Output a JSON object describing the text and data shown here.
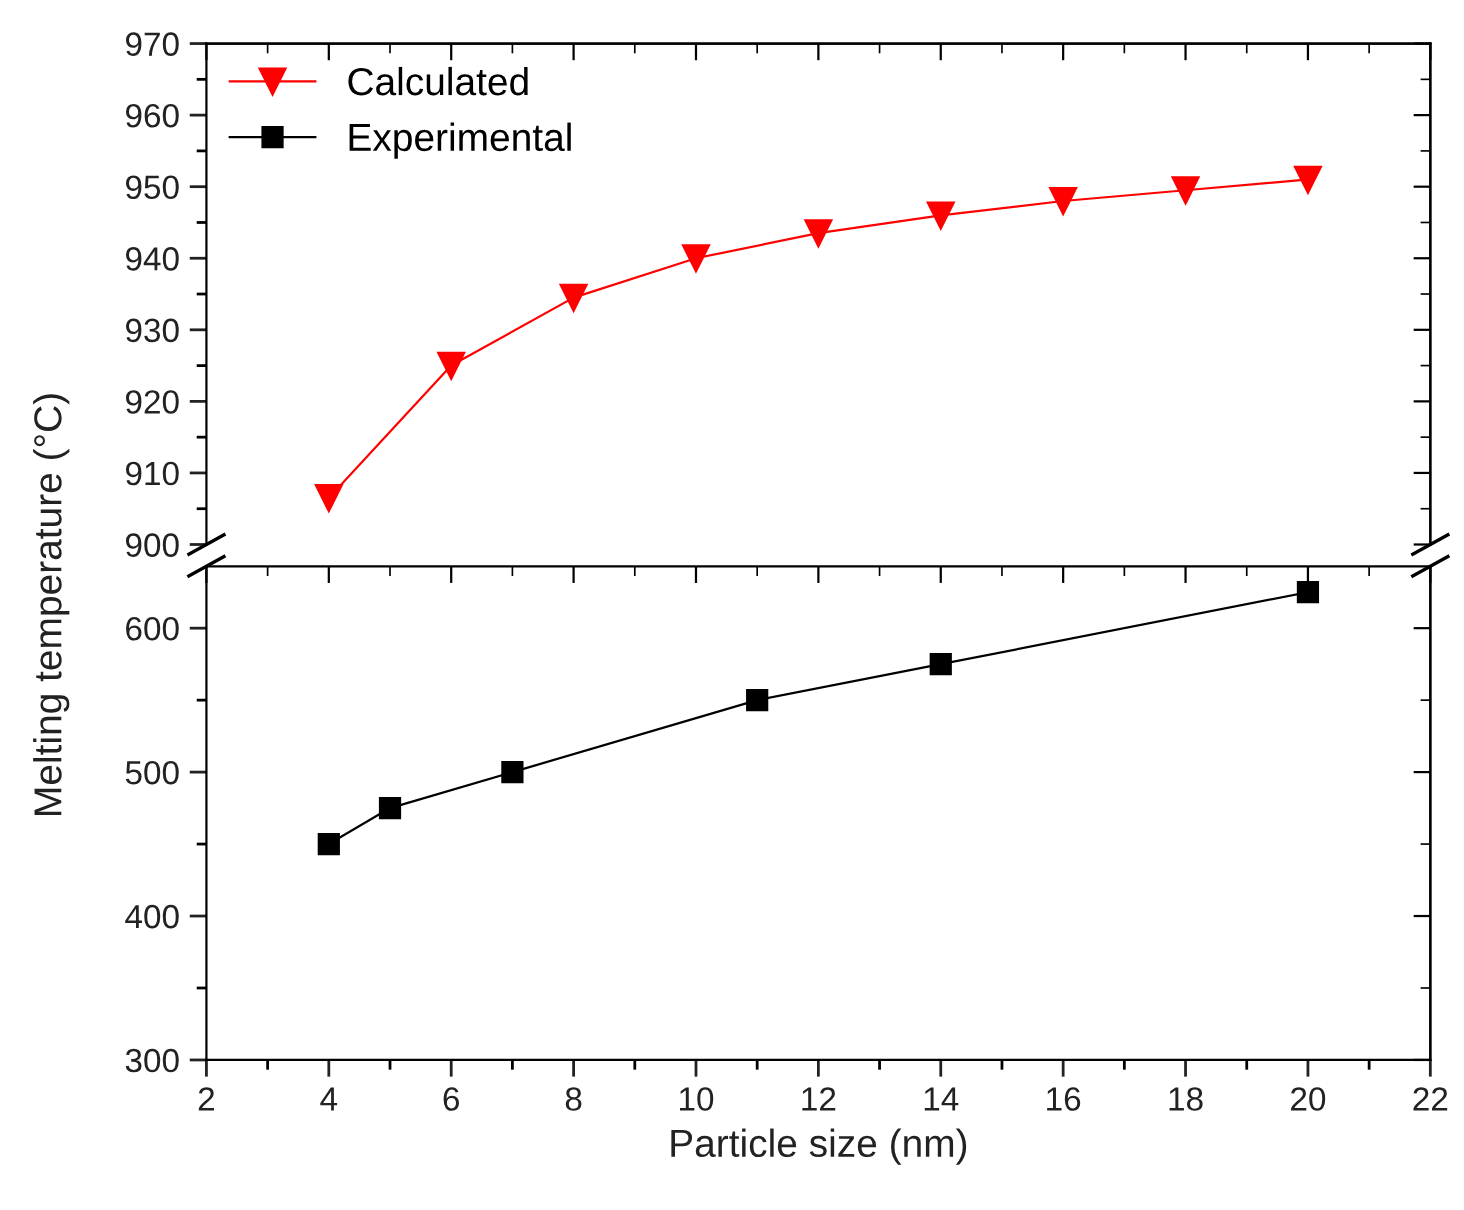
{
  "chart_data": [
    {
      "type": "line",
      "ylabel": "Melting temperature (°C)",
      "xlim": [
        2,
        22
      ],
      "xticks": [
        2,
        4,
        6,
        8,
        10,
        12,
        14,
        16,
        18,
        20,
        22
      ],
      "ylim": [
        900,
        970
      ],
      "yticks": [
        900,
        910,
        920,
        930,
        940,
        950,
        960,
        970
      ],
      "tick_labels": "y",
      "legend": "top left",
      "marker": "triangle",
      "grid": false,
      "series": [
        {
          "name": "Calculated",
          "color": "#ff0000",
          "x": [
            4,
            6,
            8,
            10,
            12,
            14,
            16,
            18,
            20
          ],
          "values": [
            906.5,
            925,
            934.5,
            940,
            943.5,
            946,
            948,
            949.5,
            951
          ]
        }
      ]
    },
    {
      "type": "line",
      "xlabel": "Particle size (nm)",
      "xlim": [
        2,
        22
      ],
      "xticks": [
        2,
        4,
        6,
        8,
        10,
        12,
        14,
        16,
        18,
        20,
        22
      ],
      "ylim": [
        300,
        643
      ],
      "yticks": [
        300,
        400,
        500,
        600
      ],
      "marker": "square",
      "grid": false,
      "series": [
        {
          "name": "Experimental",
          "color": "#000000",
          "x": [
            4,
            5,
            7,
            11,
            14,
            20
          ],
          "values": [
            450,
            475,
            500,
            550,
            575,
            625
          ]
        }
      ]
    }
  ]
}
